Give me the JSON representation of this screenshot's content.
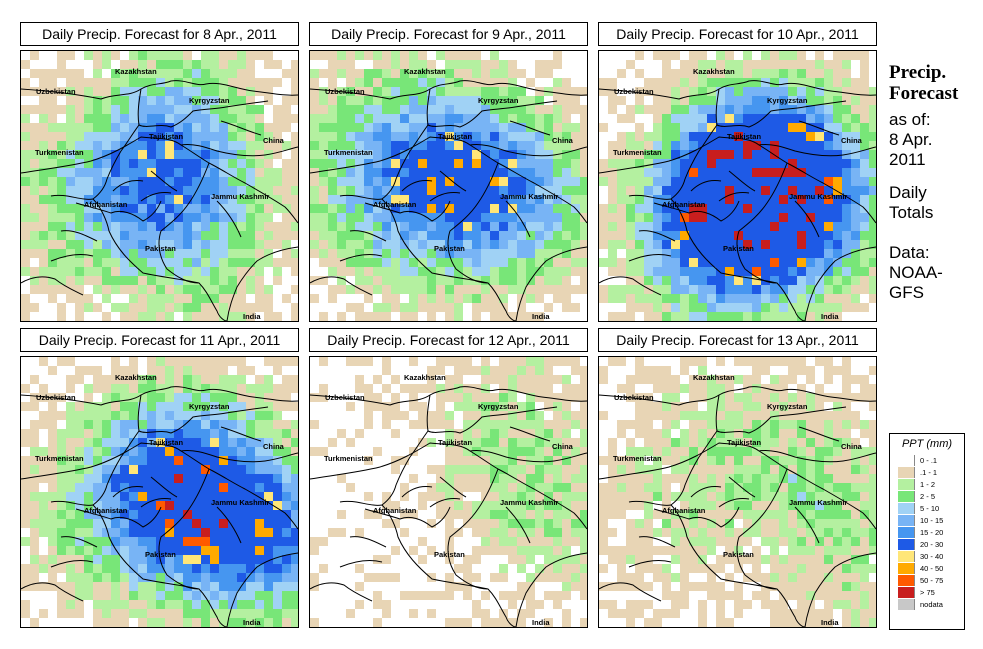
{
  "panels": [
    {
      "title": "Daily Precip. Forecast for  8 Apr., 2011",
      "day": 0
    },
    {
      "title": "Daily Precip. Forecast for  9 Apr., 2011",
      "day": 1
    },
    {
      "title": "Daily Precip. Forecast for  10 Apr., 2011",
      "day": 2
    },
    {
      "title": "Daily Precip. Forecast for  11 Apr., 2011",
      "day": 3
    },
    {
      "title": "Daily Precip. Forecast for  12 Apr., 2011",
      "day": 4
    },
    {
      "title": "Daily Precip. Forecast for  13 Apr., 2011",
      "day": 5
    }
  ],
  "map_labels": {
    "kazakhstan": "Kazakhstan",
    "uzbekistan": "Uzbekistan",
    "kyrgyzstan": "Kyrgyzstan",
    "tajikistan": "Tajikistan",
    "china": "China",
    "turkmenistan": "Turkmenistan",
    "afghanistan": "Afghanistan",
    "jammu": "Jammu Kashmir",
    "pakistan": "Pakistan",
    "india": "India"
  },
  "sidebar": {
    "title_line1": "Precip.",
    "title_line2": "Forecast",
    "asof": "as of:",
    "date1": "8 Apr.",
    "date2": "2011",
    "daily": "Daily",
    "totals": "Totals",
    "data": "Data:",
    "source1": "NOAA-",
    "source2": "GFS"
  },
  "legend": {
    "title": "PPT (mm)",
    "items": [
      {
        "label": "0 - .1",
        "color": "#ffffff"
      },
      {
        "label": ".1 - 1",
        "color": "#e8d5b5"
      },
      {
        "label": "1 - 2",
        "color": "#b4f0a0"
      },
      {
        "label": "2 - 5",
        "color": "#78e678"
      },
      {
        "label": "5 - 10",
        "color": "#a0d2f5"
      },
      {
        "label": "10 - 15",
        "color": "#78b4f5"
      },
      {
        "label": "15 - 20",
        "color": "#4696f0"
      },
      {
        "label": "20 - 30",
        "color": "#1e5ae6"
      },
      {
        "label": "30 - 40",
        "color": "#ffe678"
      },
      {
        "label": "40 - 50",
        "color": "#ffaa00"
      },
      {
        "label": "50 - 75",
        "color": "#ff5a00"
      },
      {
        "label": "> 75",
        "color": "#c81e1e"
      },
      {
        "label": "nodata",
        "color": "#c8c8c8"
      }
    ]
  }
}
